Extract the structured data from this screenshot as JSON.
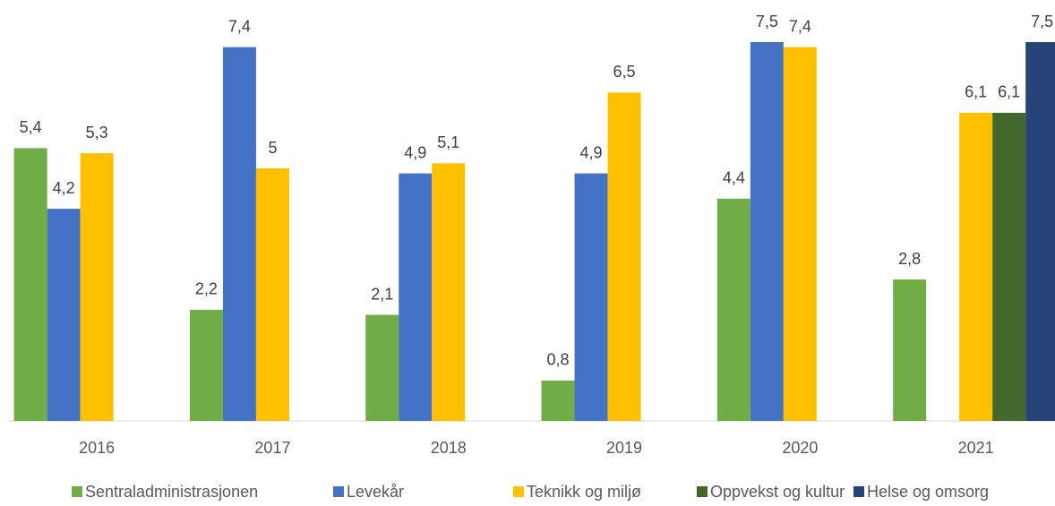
{
  "chart_data": {
    "type": "bar",
    "categories": [
      "2016",
      "2017",
      "2018",
      "2019",
      "2020",
      "2021"
    ],
    "series": [
      {
        "name": "Sentraladministrasjonen",
        "color": "#70ad47",
        "values": [
          5.4,
          2.2,
          2.1,
          0.8,
          4.4,
          2.8
        ],
        "value_labels": [
          "5,4",
          "2,2",
          "2,1",
          "0,8",
          "4,4",
          "2,8"
        ]
      },
      {
        "name": "Levekår",
        "color": "#4472c4",
        "values": [
          4.2,
          7.4,
          4.9,
          4.9,
          7.5,
          null
        ],
        "value_labels": [
          "4,2",
          "7,4",
          "4,9",
          "4,9",
          "7,5",
          null
        ]
      },
      {
        "name": "Teknikk og miljø",
        "color": "#ffc000",
        "values": [
          5.3,
          5,
          5.1,
          6.5,
          7.4,
          6.1
        ],
        "value_labels": [
          "5,3",
          "5",
          "5,1",
          "6,5",
          "7,4",
          "6,1"
        ]
      },
      {
        "name": "Oppvekst og kultur",
        "color": "#43682b",
        "values": [
          null,
          null,
          null,
          null,
          null,
          6.1
        ],
        "value_labels": [
          null,
          null,
          null,
          null,
          null,
          "6,1"
        ]
      },
      {
        "name": "Helse og omsorg",
        "color": "#264478",
        "values": [
          null,
          null,
          null,
          null,
          null,
          7.5
        ],
        "value_labels": [
          null,
          null,
          null,
          null,
          null,
          "7,5"
        ]
      }
    ],
    "legend": "bottom"
  }
}
